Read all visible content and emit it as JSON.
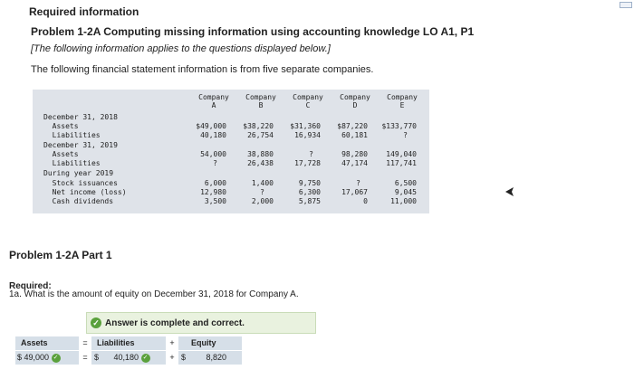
{
  "header": {
    "required_info": "Required information",
    "problem_title": "Problem 1-2A Computing missing information using accounting knowledge LO A1, P1",
    "note": "[The following information applies to the questions displayed below.]",
    "intro": "The following financial statement information is from five separate companies."
  },
  "fin_table": {
    "columns": [
      {
        "line1": "Company",
        "line2": "A"
      },
      {
        "line1": "Company",
        "line2": "B"
      },
      {
        "line1": "Company",
        "line2": "C"
      },
      {
        "line1": "Company",
        "line2": "D"
      },
      {
        "line1": "Company",
        "line2": "E"
      }
    ],
    "rows": [
      {
        "label": "December 31, 2018",
        "values": [
          "",
          "",
          "",
          "",
          ""
        ]
      },
      {
        "label": "  Assets",
        "values": [
          "$49,000",
          "$38,220",
          "$31,360",
          "$87,220",
          "$133,770"
        ]
      },
      {
        "label": "  Liabilities",
        "values": [
          "40,180",
          "26,754",
          "16,934",
          "60,181",
          "?"
        ]
      },
      {
        "label": "December 31, 2019",
        "values": [
          "",
          "",
          "",
          "",
          ""
        ]
      },
      {
        "label": "  Assets",
        "values": [
          "54,000",
          "38,880",
          "?",
          "98,280",
          "149,040"
        ]
      },
      {
        "label": "  Liabilities",
        "values": [
          "?",
          "26,438",
          "17,728",
          "47,174",
          "117,741"
        ]
      },
      {
        "label": "During year 2019",
        "values": [
          "",
          "",
          "",
          "",
          ""
        ]
      },
      {
        "label": "  Stock issuances",
        "values": [
          "6,000",
          "1,400",
          "9,750",
          "?",
          "6,500"
        ]
      },
      {
        "label": "  Net income (loss)",
        "values": [
          "12,980",
          "?",
          "6,300",
          "17,067",
          "9,045"
        ]
      },
      {
        "label": "  Cash dividends",
        "values": [
          "3,500",
          "2,000",
          "5,875",
          "0",
          "11,000"
        ]
      }
    ]
  },
  "part": {
    "title": "Problem 1-2A Part 1",
    "required_label": "Required:",
    "question": "1a. What is the amount of equity on December 31, 2018 for Company A."
  },
  "answer": {
    "status": "Answer is complete and correct.",
    "equation": {
      "assets_label": "Assets",
      "equals": "=",
      "liabilities_label": "Liabilities",
      "plus": "+",
      "equity_label": "Equity",
      "assets_value": "$ 49,000",
      "liabilities_currency": "$",
      "liabilities_value": "40,180",
      "equity_currency": "$",
      "equity_value": "8,820"
    }
  },
  "colors": {
    "table_bg": "#dfe3e9",
    "correct_green": "#5aa13c",
    "banner_bg": "#e9f2df",
    "equation_bg": "#d6dfe8"
  }
}
